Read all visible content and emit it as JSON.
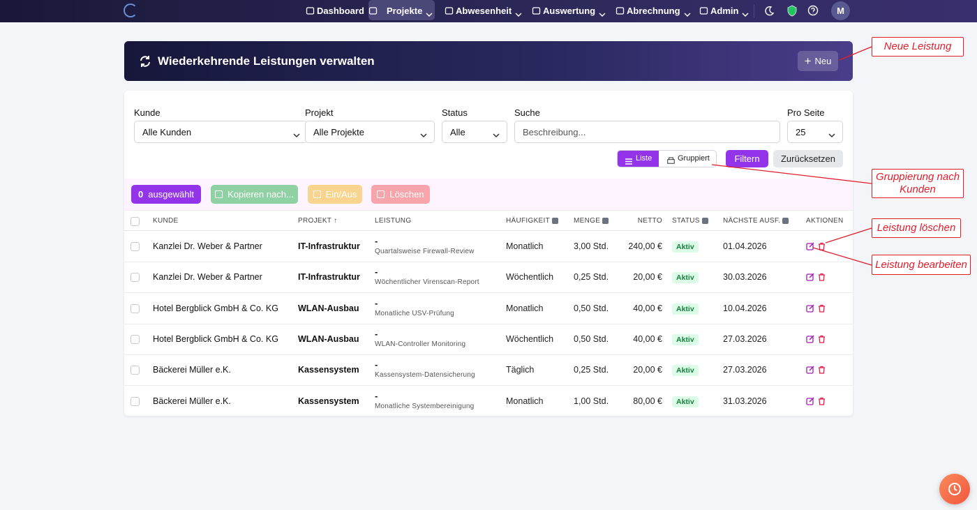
{
  "nav": {
    "items": [
      "Dashboard",
      "Projekte",
      "Abwesenheit",
      "Auswertung",
      "Abrechnung",
      "Admin"
    ],
    "avatar": "M"
  },
  "header": {
    "title": "Wiederkehrende Leistungen verwalten",
    "new_button": "Neu"
  },
  "filters": [
    {
      "label": "Kunde",
      "value": "Alle Kunden"
    },
    {
      "label": "Projekt",
      "value": "Alle Projekte"
    },
    {
      "label": "Status",
      "value": "Alle"
    },
    {
      "label": "Suche",
      "placeholder": "Beschreibung..."
    },
    {
      "label": "Pro Seite",
      "value": "25"
    }
  ],
  "view_toggle": [
    "Liste",
    "Gruppiert"
  ],
  "filter_button": "Filtern",
  "reset_button": "Zurücksetzen",
  "bulk": {
    "selected_count": 0,
    "selected_label": "ausgewählt",
    "copy": "Kopieren nach...",
    "toggle": "Ein/Aus",
    "delete": "Löschen"
  },
  "table": {
    "columns": [
      "KUNDE",
      "PROJEKT ↑",
      "LEISTUNG",
      "HÄUFIGKEIT",
      "MENGE",
      "NETTO",
      "STATUS",
      "NÄCHSTE AUSF.",
      "AKTIONEN"
    ],
    "rows": [
      {
        "kunde": "Kanzlei Dr. Weber & Partner",
        "projekt": "IT-Infrastruktur",
        "title": "-",
        "description": "Quartalsweise Firewall-Review",
        "haeufigkeit": "Monatlich",
        "menge": "3,00 Std.",
        "netto": "240,00 €",
        "status": "Aktiv",
        "next": "01.04.2026"
      },
      {
        "kunde": "Kanzlei Dr. Weber & Partner",
        "projekt": "IT-Infrastruktur",
        "title": "-",
        "description": "Wöchentlicher Virenscan-Report",
        "haeufigkeit": "Wöchentlich",
        "menge": "0,25 Std.",
        "netto": "20,00 €",
        "status": "Aktiv",
        "next": "30.03.2026"
      },
      {
        "kunde": "Hotel Bergblick GmbH & Co. KG",
        "projekt": "WLAN-Ausbau",
        "title": "-",
        "description": "Monatliche USV-Prüfung",
        "haeufigkeit": "Monatlich",
        "menge": "0,50 Std.",
        "netto": "40,00 €",
        "status": "Aktiv",
        "next": "10.04.2026"
      },
      {
        "kunde": "Hotel Bergblick GmbH & Co. KG",
        "projekt": "WLAN-Ausbau",
        "title": "-",
        "description": "WLAN-Controller Monitoring",
        "haeufigkeit": "Wöchentlich",
        "menge": "0,50 Std.",
        "netto": "40,00 €",
        "status": "Aktiv",
        "next": "27.03.2026"
      },
      {
        "kunde": "Bäckerei Müller e.K.",
        "projekt": "Kassensystem",
        "title": "-",
        "description": "Kassensystem-Datensicherung",
        "haeufigkeit": "Täglich",
        "menge": "0,25 Std.",
        "netto": "20,00 €",
        "status": "Aktiv",
        "next": "27.03.2026"
      },
      {
        "kunde": "Bäckerei Müller e.K.",
        "projekt": "Kassensystem",
        "title": "-",
        "description": "Monatliche Systembereinigung",
        "haeufigkeit": "Monatlich",
        "menge": "1,00 Std.",
        "netto": "80,00 €",
        "status": "Aktiv",
        "next": "31.03.2026"
      }
    ]
  },
  "annotations": [
    "Neue Leistung",
    "Gruppierung nach Kunden",
    "Leistung löschen",
    "Leistung bearbeiten"
  ]
}
